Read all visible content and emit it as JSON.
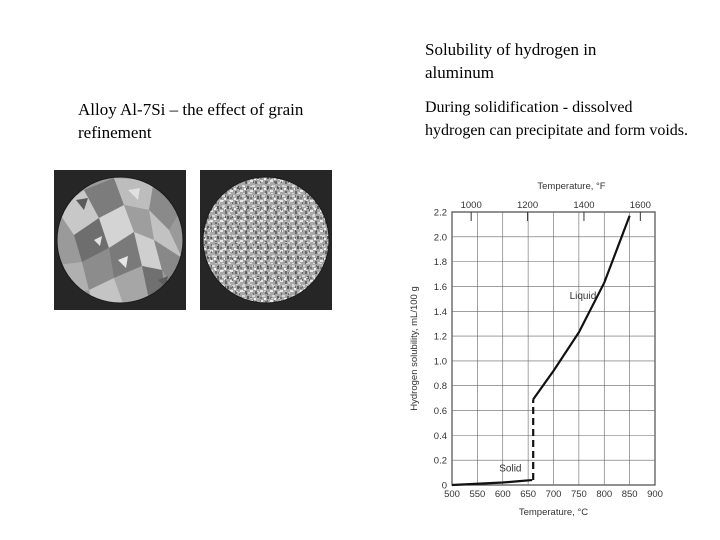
{
  "left": {
    "heading": "Alloy Al-7Si – the effect of grain refinement",
    "images": [
      {
        "description_name": "coarse-grain-macrostructure"
      },
      {
        "description_name": "refined-grain-macrostructure"
      }
    ]
  },
  "right": {
    "title": "Solubility of hydrogen in aluminum",
    "description": "During solidification - dissolved hydrogen can precipitate and form voids."
  },
  "chart_data": {
    "type": "line",
    "top_axis_label": "Temperature, °F",
    "xlabel": "Temperature, °C",
    "ylabel": "Hydrogen solubility, mL/100 g",
    "xlim": [
      500,
      900
    ],
    "ylim": [
      0,
      2.2
    ],
    "x_ticks": [
      "500",
      "550",
      "600",
      "650",
      "700",
      "750",
      "800",
      "850",
      "900"
    ],
    "y_ticks": [
      "0",
      "0.2",
      "0.4",
      "0.6",
      "0.8",
      "1.0",
      "1.2",
      "1.4",
      "1.6",
      "1.8",
      "2.0",
      "2.2"
    ],
    "top_ticks": [
      "1000",
      "1200",
      "1400",
      "1600"
    ],
    "grid": true,
    "annotations": [
      "Liquid",
      "Solid"
    ],
    "series": [
      {
        "values_x": [
          500,
          550,
          600,
          630,
          658
        ],
        "values_y": [
          0.0,
          0.01,
          0.02,
          0.03,
          0.04
        ]
      },
      {
        "values_x": [
          660,
          660
        ],
        "values_y": [
          0.04,
          0.69
        ],
        "style": "dashed"
      },
      {
        "values_x": [
          660,
          700,
          750,
          800,
          850
        ],
        "values_y": [
          0.69,
          0.92,
          1.23,
          1.63,
          2.17
        ]
      }
    ]
  }
}
